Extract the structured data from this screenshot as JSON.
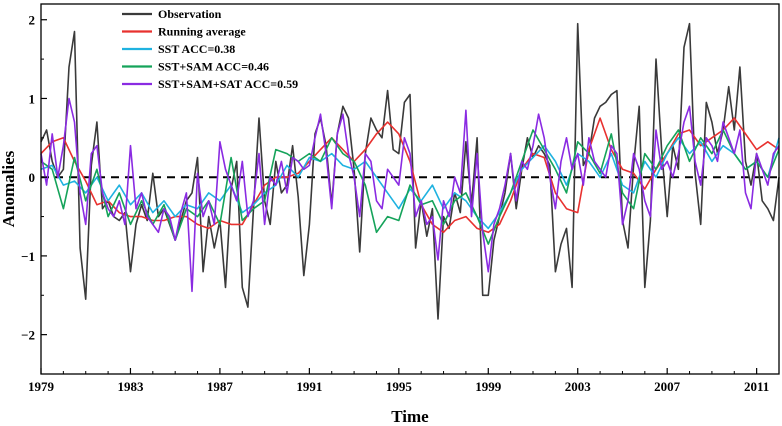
{
  "chart_data": {
    "type": "line",
    "title": "",
    "xlabel": "Time",
    "ylabel": "Anomalies",
    "xlim": [
      1979,
      2012
    ],
    "ylim": [
      -2.5,
      2.2
    ],
    "x_ticks": [
      1979,
      1983,
      1987,
      1991,
      1995,
      1999,
      2003,
      2007,
      2011
    ],
    "x_tick_labels": [
      "1979",
      "1983",
      "1987",
      "1991",
      "1995",
      "1999",
      "2003",
      "2007",
      "2011"
    ],
    "y_ticks": [
      -2,
      -1,
      0,
      1,
      2
    ],
    "y_tick_labels": [
      "−2",
      "−1",
      "0",
      "1",
      "2"
    ],
    "reference_line": {
      "y": 0,
      "style": "dashed",
      "color": "#000000"
    },
    "legend_position": "top-left",
    "series": [
      {
        "name": "Observation",
        "color": "#3a3a3a",
        "x": [
          1979.0,
          1979.25,
          1979.5,
          1979.75,
          1980.0,
          1980.25,
          1980.5,
          1980.75,
          1981.0,
          1981.25,
          1981.5,
          1981.75,
          1982.0,
          1982.25,
          1982.5,
          1982.75,
          1983.0,
          1983.25,
          1983.5,
          1983.75,
          1984.0,
          1984.25,
          1984.5,
          1984.75,
          1985.0,
          1985.25,
          1985.5,
          1985.75,
          1986.0,
          1986.25,
          1986.5,
          1986.75,
          1987.0,
          1987.25,
          1987.5,
          1987.75,
          1988.0,
          1988.25,
          1988.5,
          1988.75,
          1989.0,
          1989.25,
          1989.5,
          1989.75,
          1990.0,
          1990.25,
          1990.5,
          1990.75,
          1991.0,
          1991.25,
          1991.5,
          1991.75,
          1992.0,
          1992.25,
          1992.5,
          1992.75,
          1993.0,
          1993.25,
          1993.5,
          1993.75,
          1994.0,
          1994.25,
          1994.5,
          1994.75,
          1995.0,
          1995.25,
          1995.5,
          1995.75,
          1996.0,
          1996.25,
          1996.5,
          1996.75,
          1997.0,
          1997.25,
          1997.5,
          1997.75,
          1998.0,
          1998.25,
          1998.5,
          1998.75,
          1999.0,
          1999.25,
          1999.5,
          1999.75,
          2000.0,
          2000.25,
          2000.5,
          2000.75,
          2001.0,
          2001.25,
          2001.5,
          2001.75,
          2002.0,
          2002.25,
          2002.5,
          2002.75,
          2003.0,
          2003.25,
          2003.5,
          2003.75,
          2004.0,
          2004.25,
          2004.5,
          2004.75,
          2005.0,
          2005.25,
          2005.5,
          2005.75,
          2006.0,
          2006.25,
          2006.5,
          2006.75,
          2007.0,
          2007.25,
          2007.5,
          2007.75,
          2008.0,
          2008.25,
          2008.5,
          2008.75,
          2009.0,
          2009.25,
          2009.5,
          2009.75,
          2010.0,
          2010.25,
          2010.5,
          2010.75,
          2011.0,
          2011.25,
          2011.5,
          2011.75,
          2012.0
        ],
        "values": [
          0.45,
          0.6,
          0.2,
          0.0,
          0.1,
          1.4,
          1.85,
          -0.9,
          -1.55,
          0.15,
          0.7,
          -0.4,
          -0.3,
          -0.5,
          -0.55,
          -0.45,
          -1.2,
          -0.6,
          -0.35,
          -0.55,
          0.05,
          -0.5,
          -0.4,
          -0.6,
          -0.8,
          -0.55,
          -0.3,
          -0.2,
          0.25,
          -1.2,
          -0.5,
          -0.9,
          -0.55,
          -1.4,
          -0.15,
          0.2,
          -1.4,
          -1.65,
          -0.4,
          0.75,
          -0.3,
          -0.6,
          0.2,
          -0.2,
          -0.1,
          0.4,
          -0.25,
          -1.25,
          -0.6,
          0.55,
          0.75,
          0.4,
          -0.35,
          0.55,
          0.9,
          0.75,
          0.1,
          -0.95,
          0.3,
          0.75,
          0.6,
          0.5,
          1.1,
          0.35,
          0.3,
          0.95,
          1.05,
          -0.9,
          -0.3,
          -0.75,
          -0.4,
          -1.8,
          -0.5,
          -0.65,
          -0.2,
          -0.45,
          0.45,
          -0.35,
          0.5,
          -1.5,
          -1.5,
          -0.8,
          -0.5,
          -0.2,
          0.3,
          -0.4,
          0.1,
          0.5,
          0.25,
          0.4,
          0.3,
          0.15,
          -1.2,
          -0.85,
          -0.65,
          -1.4,
          1.95,
          0.15,
          0.3,
          0.75,
          0.9,
          0.95,
          1.05,
          1.1,
          -0.55,
          -0.9,
          0.15,
          0.9,
          -1.4,
          -0.55,
          1.5,
          0.35,
          -0.5,
          0.4,
          0.1,
          1.65,
          1.95,
          0.05,
          -0.6,
          0.95,
          0.7,
          0.3,
          0.6,
          1.15,
          0.6,
          1.4,
          0.2,
          -0.1,
          0.3,
          -0.3,
          -0.4,
          -0.55,
          0.0
        ]
      },
      {
        "name": "Running average",
        "color": "#e8312f",
        "x": [
          1979.0,
          1979.5,
          1980.0,
          1980.5,
          1981.0,
          1981.5,
          1982.0,
          1982.5,
          1983.0,
          1983.5,
          1984.0,
          1984.5,
          1985.0,
          1985.5,
          1986.0,
          1986.5,
          1987.0,
          1987.5,
          1988.0,
          1988.5,
          1989.0,
          1989.5,
          1990.0,
          1990.5,
          1991.0,
          1991.5,
          1992.0,
          1992.5,
          1993.0,
          1993.5,
          1994.0,
          1994.5,
          1995.0,
          1995.5,
          1996.0,
          1996.5,
          1997.0,
          1997.5,
          1998.0,
          1998.5,
          1999.0,
          1999.5,
          2000.0,
          2000.5,
          2001.0,
          2001.5,
          2002.0,
          2002.5,
          2003.0,
          2003.5,
          2004.0,
          2004.5,
          2005.0,
          2005.5,
          2006.0,
          2006.5,
          2007.0,
          2007.5,
          2008.0,
          2008.5,
          2009.0,
          2009.5,
          2010.0,
          2010.5,
          2011.0,
          2011.5,
          2012.0
        ],
        "values": [
          0.3,
          0.45,
          0.5,
          0.2,
          -0.05,
          -0.35,
          -0.3,
          -0.45,
          -0.5,
          -0.5,
          -0.55,
          -0.55,
          -0.5,
          -0.5,
          -0.6,
          -0.65,
          -0.55,
          -0.6,
          -0.6,
          -0.35,
          -0.1,
          0.0,
          0.0,
          0.05,
          0.2,
          0.35,
          0.5,
          0.35,
          0.2,
          0.35,
          0.55,
          0.7,
          0.55,
          0.2,
          -0.35,
          -0.6,
          -0.7,
          -0.55,
          -0.5,
          -0.65,
          -0.7,
          -0.6,
          -0.3,
          0.1,
          0.3,
          0.25,
          -0.2,
          -0.4,
          -0.45,
          0.35,
          0.75,
          0.35,
          0.1,
          0.05,
          -0.15,
          0.1,
          0.3,
          0.55,
          0.6,
          0.4,
          0.5,
          0.6,
          0.75,
          0.55,
          0.35,
          0.45,
          0.35
        ]
      },
      {
        "name": "SST ACC=0.38",
        "color": "#1fb2e0",
        "x": [
          1979.0,
          1979.5,
          1980.0,
          1980.5,
          1981.0,
          1981.5,
          1982.0,
          1982.5,
          1983.0,
          1983.5,
          1984.0,
          1984.5,
          1985.0,
          1985.5,
          1986.0,
          1986.5,
          1987.0,
          1987.5,
          1988.0,
          1988.5,
          1989.0,
          1989.5,
          1990.0,
          1990.5,
          1991.0,
          1991.5,
          1992.0,
          1992.5,
          1993.0,
          1993.5,
          1994.0,
          1994.5,
          1995.0,
          1995.5,
          1996.0,
          1996.5,
          1997.0,
          1997.5,
          1998.0,
          1998.5,
          1999.0,
          1999.5,
          2000.0,
          2000.5,
          2001.0,
          2001.5,
          2002.0,
          2002.5,
          2003.0,
          2003.5,
          2004.0,
          2004.5,
          2005.0,
          2005.5,
          2006.0,
          2006.5,
          2007.0,
          2007.5,
          2008.0,
          2008.5,
          2009.0,
          2009.5,
          2010.0,
          2010.5,
          2011.0,
          2011.5,
          2012.0
        ],
        "values": [
          0.1,
          0.15,
          -0.1,
          -0.05,
          -0.2,
          0.0,
          -0.3,
          -0.1,
          -0.35,
          -0.2,
          -0.45,
          -0.3,
          -0.5,
          -0.35,
          -0.4,
          -0.2,
          -0.3,
          -0.1,
          -0.45,
          -0.35,
          -0.2,
          -0.1,
          0.15,
          0.0,
          0.25,
          0.2,
          0.3,
          0.15,
          0.1,
          0.2,
          0.0,
          -0.2,
          -0.4,
          -0.15,
          -0.3,
          -0.1,
          -0.4,
          -0.2,
          -0.3,
          -0.5,
          -0.65,
          -0.45,
          -0.2,
          0.1,
          0.25,
          0.4,
          0.2,
          -0.1,
          0.3,
          0.2,
          0.0,
          0.3,
          -0.1,
          -0.2,
          0.2,
          0.0,
          0.3,
          0.5,
          0.3,
          0.45,
          0.2,
          0.4,
          0.3,
          0.1,
          0.2,
          0.0,
          0.5
        ]
      },
      {
        "name": "SST+SAM ACC=0.46",
        "color": "#15a35a",
        "x": [
          1979.0,
          1979.5,
          1980.0,
          1980.5,
          1981.0,
          1981.5,
          1982.0,
          1982.5,
          1983.0,
          1983.5,
          1984.0,
          1984.5,
          1985.0,
          1985.5,
          1986.0,
          1986.5,
          1987.0,
          1987.5,
          1988.0,
          1988.5,
          1989.0,
          1989.5,
          1990.0,
          1990.5,
          1991.0,
          1991.5,
          1992.0,
          1992.5,
          1993.0,
          1993.5,
          1994.0,
          1994.5,
          1995.0,
          1995.5,
          1996.0,
          1996.5,
          1997.0,
          1997.5,
          1998.0,
          1998.5,
          1999.0,
          1999.5,
          2000.0,
          2000.5,
          2001.0,
          2001.5,
          2002.0,
          2002.5,
          2003.0,
          2003.5,
          2004.0,
          2004.5,
          2005.0,
          2005.5,
          2006.0,
          2006.5,
          2007.0,
          2007.5,
          2008.0,
          2008.5,
          2009.0,
          2009.5,
          2010.0,
          2010.5,
          2011.0,
          2011.5,
          2012.0
        ],
        "values": [
          0.2,
          0.1,
          -0.4,
          0.25,
          -0.3,
          0.1,
          -0.5,
          -0.2,
          -0.6,
          -0.3,
          -0.6,
          -0.35,
          -0.8,
          -0.4,
          -0.5,
          -0.3,
          -0.6,
          0.25,
          -0.55,
          -0.4,
          -0.3,
          0.35,
          0.3,
          0.2,
          0.3,
          0.2,
          0.5,
          0.3,
          0.2,
          -0.1,
          -0.7,
          -0.5,
          -0.55,
          -0.1,
          -0.35,
          -0.3,
          -0.6,
          -0.3,
          -0.2,
          -0.5,
          -0.85,
          -0.5,
          -0.2,
          0.2,
          0.6,
          0.35,
          0.1,
          -0.2,
          0.45,
          0.3,
          0.05,
          0.55,
          -0.2,
          -0.4,
          0.3,
          0.1,
          0.4,
          0.6,
          0.2,
          0.5,
          0.3,
          0.6,
          0.3,
          0.1,
          0.2,
          0.0,
          0.35
        ]
      },
      {
        "name": "SST+SAM+SAT ACC=0.59",
        "color": "#8a2be2",
        "x": [
          1979.0,
          1979.25,
          1979.5,
          1979.75,
          1980.0,
          1980.25,
          1980.5,
          1980.75,
          1981.0,
          1981.25,
          1981.5,
          1981.75,
          1982.0,
          1982.25,
          1982.5,
          1982.75,
          1983.0,
          1983.25,
          1983.5,
          1983.75,
          1984.0,
          1984.25,
          1984.5,
          1984.75,
          1985.0,
          1985.25,
          1985.5,
          1985.75,
          1986.0,
          1986.25,
          1986.5,
          1986.75,
          1987.0,
          1987.25,
          1987.5,
          1987.75,
          1988.0,
          1988.25,
          1988.5,
          1988.75,
          1989.0,
          1989.25,
          1989.5,
          1989.75,
          1990.0,
          1990.25,
          1990.5,
          1990.75,
          1991.0,
          1991.25,
          1991.5,
          1991.75,
          1992.0,
          1992.25,
          1992.5,
          1992.75,
          1993.0,
          1993.25,
          1993.5,
          1993.75,
          1994.0,
          1994.25,
          1994.5,
          1994.75,
          1995.0,
          1995.25,
          1995.5,
          1995.75,
          1996.0,
          1996.25,
          1996.5,
          1996.75,
          1997.0,
          1997.25,
          1997.5,
          1997.75,
          1998.0,
          1998.25,
          1998.5,
          1998.75,
          1999.0,
          1999.25,
          1999.5,
          1999.75,
          2000.0,
          2000.25,
          2000.5,
          2000.75,
          2001.0,
          2001.25,
          2001.5,
          2001.75,
          2002.0,
          2002.25,
          2002.5,
          2002.75,
          2003.0,
          2003.25,
          2003.5,
          2003.75,
          2004.0,
          2004.25,
          2004.5,
          2004.75,
          2005.0,
          2005.25,
          2005.5,
          2005.75,
          2006.0,
          2006.25,
          2006.5,
          2006.75,
          2007.0,
          2007.25,
          2007.5,
          2007.75,
          2008.0,
          2008.25,
          2008.5,
          2008.75,
          2009.0,
          2009.25,
          2009.5,
          2009.75,
          2010.0,
          2010.25,
          2010.5,
          2010.75,
          2011.0,
          2011.25,
          2011.5,
          2011.75,
          2012.0
        ],
        "values": [
          0.3,
          -0.1,
          0.55,
          0.0,
          0.4,
          1.0,
          0.7,
          -0.2,
          -0.6,
          0.3,
          0.4,
          -0.2,
          -0.4,
          -0.5,
          -0.3,
          -0.6,
          0.4,
          -0.4,
          -0.2,
          -0.5,
          -0.6,
          -0.7,
          -0.4,
          -0.5,
          -0.8,
          -0.45,
          -0.2,
          -1.45,
          0.05,
          -0.5,
          -0.3,
          -0.6,
          0.45,
          0.1,
          -0.1,
          -0.3,
          0.2,
          -0.5,
          -0.3,
          0.3,
          -0.6,
          0.0,
          -0.1,
          0.2,
          -0.2,
          0.25,
          0.2,
          0.1,
          0.15,
          0.5,
          0.8,
          0.3,
          -0.4,
          0.55,
          0.8,
          0.3,
          0.0,
          -0.5,
          0.3,
          0.2,
          -0.3,
          -0.4,
          0.1,
          0.0,
          -0.1,
          0.5,
          0.3,
          -0.5,
          -0.3,
          -0.6,
          -0.5,
          -1.05,
          -0.3,
          -0.5,
          0.0,
          -0.2,
          0.85,
          -0.5,
          0.3,
          -0.7,
          -1.2,
          -0.6,
          -0.4,
          -0.1,
          0.3,
          -0.3,
          0.2,
          0.1,
          0.4,
          0.8,
          0.5,
          0.0,
          -0.4,
          0.2,
          0.5,
          0.1,
          0.3,
          -0.1,
          0.5,
          0.2,
          0.1,
          0.0,
          0.4,
          0.3,
          -0.6,
          -0.3,
          0.3,
          0.1,
          -0.3,
          -0.5,
          0.6,
          0.1,
          0.2,
          0.0,
          0.3,
          0.7,
          0.9,
          0.2,
          -0.1,
          0.5,
          0.4,
          0.2,
          0.7,
          0.5,
          0.3,
          0.6,
          -0.2,
          -0.4,
          0.3,
          0.1,
          -0.1,
          0.3,
          0.4
        ]
      }
    ]
  }
}
